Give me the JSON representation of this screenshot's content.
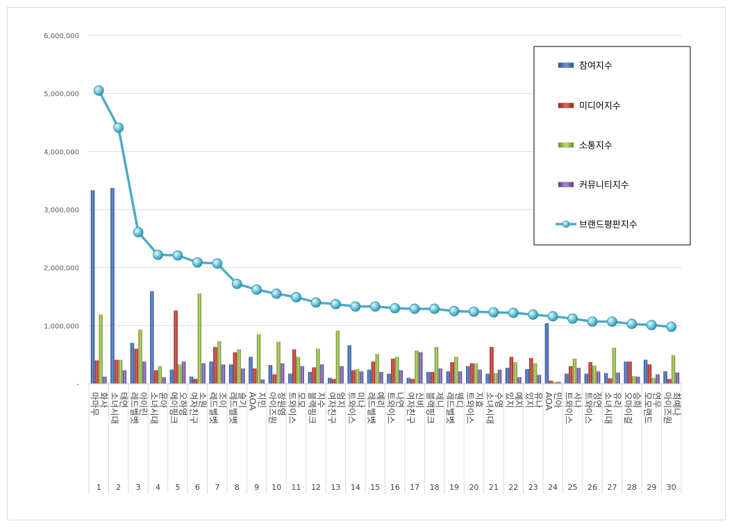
{
  "chart_data": {
    "type": "bar",
    "y_ticks": [
      "-",
      "1,000,000",
      "2,000,000",
      "3,000,000",
      "4,000,000",
      "5,000,000",
      "6,000,000"
    ],
    "ylim": [
      0,
      6000000
    ],
    "grid": true,
    "legend_position": "top-right",
    "categories": [
      {
        "num": "1",
        "name": "마마무 화사"
      },
      {
        "num": "2",
        "name": "소녀시대 태연"
      },
      {
        "num": "3",
        "name": "레드벨벳 아이린"
      },
      {
        "num": "4",
        "name": "소녀시대 윤아"
      },
      {
        "num": "5",
        "name": "에이핑크 오하영"
      },
      {
        "num": "6",
        "name": "여자친구 소원"
      },
      {
        "num": "7",
        "name": "레드벨벳 조이"
      },
      {
        "num": "8",
        "name": "레드벨벳 슬기"
      },
      {
        "num": "9",
        "name": "AOA 지민"
      },
      {
        "num": "10",
        "name": "아이즈원 장원영"
      },
      {
        "num": "11",
        "name": "트와이스 모모"
      },
      {
        "num": "12",
        "name": "블랙핑크 지수"
      },
      {
        "num": "13",
        "name": "여자친구 엄지"
      },
      {
        "num": "14",
        "name": "트와이스 미나"
      },
      {
        "num": "15",
        "name": "레드벨벳 예리"
      },
      {
        "num": "16",
        "name": "트와이스 나연"
      },
      {
        "num": "17",
        "name": "여자친구 신비"
      },
      {
        "num": "18",
        "name": "블랙핑크 제니"
      },
      {
        "num": "19",
        "name": "레드벨벳 웬디"
      },
      {
        "num": "20",
        "name": "트와이스 지효"
      },
      {
        "num": "21",
        "name": "소녀시대 수영"
      },
      {
        "num": "22",
        "name": "있지 예지"
      },
      {
        "num": "23",
        "name": "있지 유나"
      },
      {
        "num": "24",
        "name": "AOA 민아"
      },
      {
        "num": "25",
        "name": "트와이스 사나"
      },
      {
        "num": "26",
        "name": "트와이스 정연"
      },
      {
        "num": "27",
        "name": "소녀시대 유리"
      },
      {
        "num": "28",
        "name": "오마이걸 승희"
      },
      {
        "num": "29",
        "name": "모모랜드 연우"
      },
      {
        "num": "30",
        "name": "아이즈원 최예나"
      }
    ],
    "series": [
      {
        "name": "참여지수",
        "type": "bar",
        "color": "#3a64a8",
        "values": [
          3330000,
          3370000,
          700000,
          1590000,
          240000,
          120000,
          380000,
          330000,
          460000,
          320000,
          170000,
          200000,
          100000,
          660000,
          240000,
          170000,
          100000,
          200000,
          210000,
          300000,
          170000,
          270000,
          250000,
          1040000,
          170000,
          170000,
          180000,
          380000,
          410000,
          210000
        ]
      },
      {
        "name": "미디어지수",
        "type": "bar",
        "color": "#c0392b",
        "values": [
          400000,
          410000,
          600000,
          230000,
          1260000,
          80000,
          630000,
          540000,
          260000,
          160000,
          590000,
          280000,
          80000,
          230000,
          380000,
          430000,
          80000,
          200000,
          370000,
          350000,
          630000,
          460000,
          440000,
          50000,
          300000,
          370000,
          90000,
          380000,
          330000,
          80000
        ]
      },
      {
        "name": "소통지수",
        "type": "bar",
        "color": "#93b448",
        "values": [
          1190000,
          410000,
          930000,
          300000,
          330000,
          1550000,
          730000,
          590000,
          850000,
          720000,
          460000,
          600000,
          910000,
          250000,
          510000,
          460000,
          570000,
          630000,
          460000,
          350000,
          180000,
          370000,
          350000,
          30000,
          430000,
          310000,
          620000,
          130000,
          100000,
          490000
        ]
      },
      {
        "name": "커뮤니티지수",
        "type": "bar",
        "color": "#7a5ea7",
        "values": [
          120000,
          230000,
          380000,
          110000,
          380000,
          350000,
          330000,
          260000,
          70000,
          350000,
          300000,
          330000,
          300000,
          210000,
          200000,
          230000,
          540000,
          260000,
          210000,
          240000,
          240000,
          110000,
          150000,
          30000,
          270000,
          210000,
          190000,
          120000,
          160000,
          190000
        ]
      },
      {
        "name": "브랜드평판지수",
        "type": "line",
        "color": "#4bacc6",
        "values": [
          5050000,
          4410000,
          2610000,
          2220000,
          2210000,
          2090000,
          2070000,
          1720000,
          1620000,
          1550000,
          1490000,
          1400000,
          1370000,
          1330000,
          1330000,
          1300000,
          1290000,
          1290000,
          1250000,
          1240000,
          1230000,
          1220000,
          1190000,
          1160000,
          1120000,
          1070000,
          1070000,
          1030000,
          1010000,
          980000
        ]
      }
    ]
  }
}
